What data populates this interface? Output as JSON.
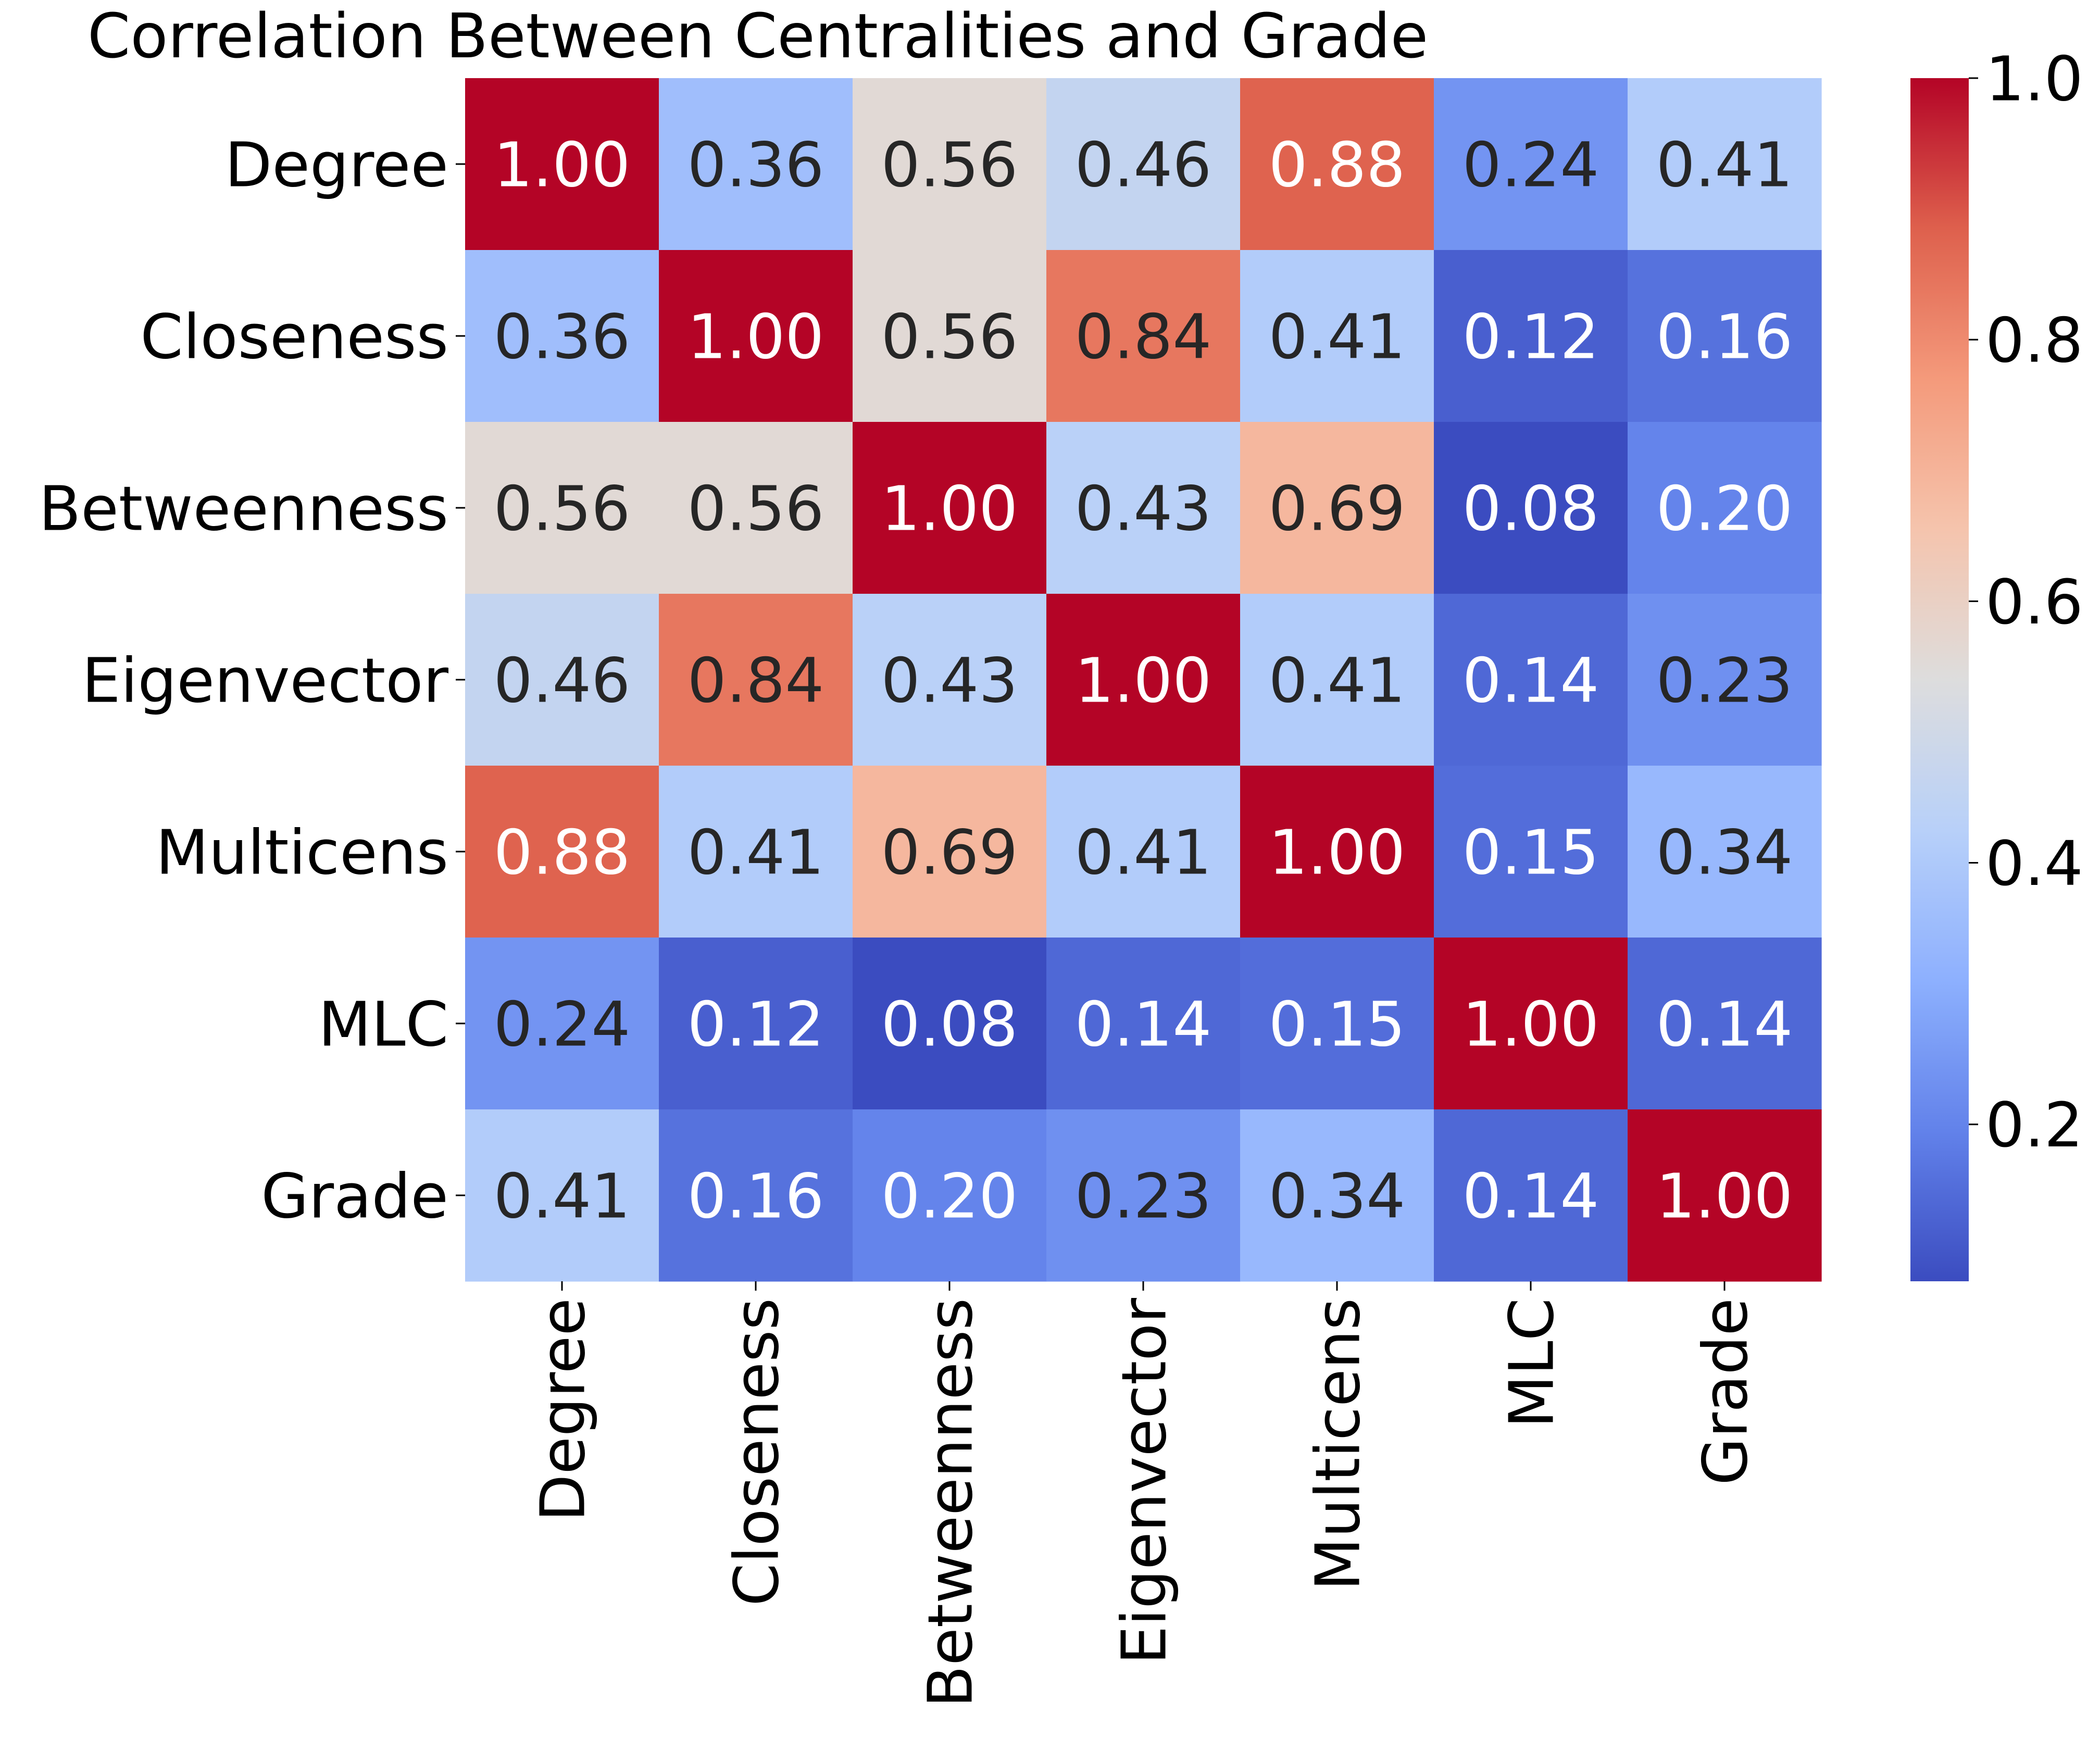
{
  "chart_data": {
    "type": "heatmap",
    "title": "Correlation Between Centralities and Grade",
    "rows": [
      "Degree",
      "Closeness",
      "Betweenness",
      "Eigenvector",
      "Multicens",
      "MLC",
      "Grade"
    ],
    "cols": [
      "Degree",
      "Closeness",
      "Betweenness",
      "Eigenvector",
      "Multicens",
      "MLC",
      "Grade"
    ],
    "values": [
      [
        1.0,
        0.36,
        0.56,
        0.46,
        0.88,
        0.24,
        0.41
      ],
      [
        0.36,
        1.0,
        0.56,
        0.84,
        0.41,
        0.12,
        0.16
      ],
      [
        0.56,
        0.56,
        1.0,
        0.43,
        0.69,
        0.08,
        0.2
      ],
      [
        0.46,
        0.84,
        0.43,
        1.0,
        0.41,
        0.14,
        0.23
      ],
      [
        0.88,
        0.41,
        0.69,
        0.41,
        1.0,
        0.15,
        0.34
      ],
      [
        0.24,
        0.12,
        0.08,
        0.14,
        0.15,
        1.0,
        0.14
      ],
      [
        0.41,
        0.16,
        0.2,
        0.23,
        0.34,
        0.14,
        1.0
      ]
    ],
    "colormap": "coolwarm",
    "vmin": 0.08,
    "vmax": 1.0,
    "colorbar": {
      "ticks": [
        0.2,
        0.4,
        0.6,
        0.8,
        1.0
      ],
      "tick_labels": [
        "0.2",
        "0.4",
        "0.6",
        "0.8",
        "1.0"
      ],
      "placement": "right"
    },
    "annotation_format": "2 decimals",
    "xlabel": "",
    "ylabel": ""
  }
}
